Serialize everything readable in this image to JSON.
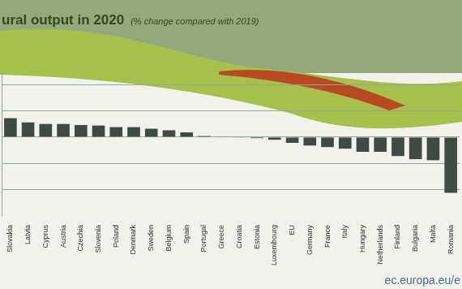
{
  "chart_data": {
    "type": "bar",
    "title": "ural output in 2020",
    "subtitle": "(% change compared with 2019)",
    "source": "ec.europa.eu/e",
    "categories": [
      "Slovakia",
      "Latvia",
      "Cyprus",
      "Austria",
      "Czechia",
      "Slovenia",
      "Poland",
      "Denmark",
      "Sweden",
      "Belgium",
      "Spain",
      "Portugal",
      "Greece",
      "Croatia",
      "Estonia",
      "Luxembourg",
      "EU",
      "Germany",
      "France",
      "Italy",
      "Hungary",
      "Netherlands",
      "Finland",
      "Bulgaria",
      "Malta",
      "Romania"
    ],
    "values": [
      3.6,
      2.8,
      2.5,
      2.5,
      2.3,
      2.2,
      1.9,
      1.9,
      1.6,
      1.3,
      0.9,
      0.2,
      0.1,
      -0.1,
      -0.2,
      -0.5,
      -1.1,
      -1.6,
      -1.9,
      -2.2,
      -2.8,
      -2.8,
      -3.6,
      -4.2,
      -4.4,
      -10.6
    ],
    "color": "#3e4a43",
    "ylim": [
      -15,
      12.5
    ],
    "yticks": [
      -10,
      -5,
      0,
      5,
      10
    ],
    "grid": true,
    "tick_labels": "x"
  }
}
